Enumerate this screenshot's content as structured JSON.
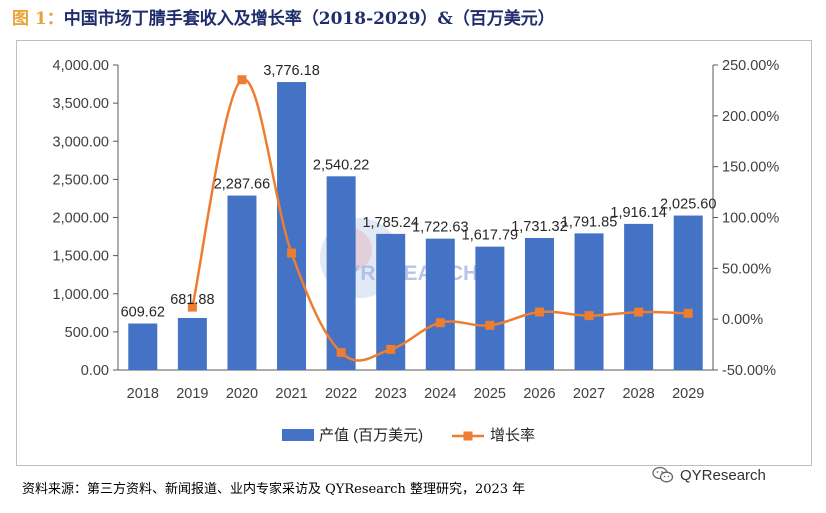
{
  "title": {
    "prefix": "图 1：",
    "main": "中国市场丁腈手套收入及增长率（2018-2029）&（百万美元）"
  },
  "source": "资料来源：第三方资料、新闻报道、业内专家采访及 QYResearch 整理研究，2023 年",
  "brand": {
    "name": "QYResearch",
    "icon": "wechat-icon"
  },
  "watermark": {
    "text": "QYRESEARCH",
    "icon": "globe-logo-icon"
  },
  "colors": {
    "bar": "#4472c4",
    "line": "#ed7d31",
    "axis": "#595959",
    "grid": "#d9d9d9"
  },
  "chart_data": {
    "type": "bar",
    "categories": [
      "2018",
      "2019",
      "2020",
      "2021",
      "2022",
      "2023",
      "2024",
      "2025",
      "2026",
      "2027",
      "2028",
      "2029"
    ],
    "series": [
      {
        "name": "产值 (百万美元)",
        "type": "bar",
        "axis": "left",
        "values": [
          609.62,
          681.88,
          2287.66,
          3776.18,
          2540.22,
          1785.24,
          1722.63,
          1617.79,
          1731.32,
          1791.85,
          1916.14,
          2025.6
        ],
        "labels": [
          "609.62",
          "681.88",
          "2,287.66",
          "3,776.18",
          "2,540.22",
          "1,785.24",
          "1,722.63",
          "1,617.79",
          "1,731.32",
          "1,791.85",
          "1,916.14",
          "2,025.60"
        ]
      },
      {
        "name": "增长率",
        "type": "line",
        "axis": "right",
        "values": [
          null,
          11.85,
          235.5,
          65.07,
          -32.73,
          -29.72,
          -3.51,
          -6.09,
          7.02,
          3.5,
          6.94,
          5.71
        ]
      }
    ],
    "left_axis": {
      "min": 0,
      "max": 4000,
      "ticks": [
        "0.00",
        "500.00",
        "1,000.00",
        "1,500.00",
        "2,000.00",
        "2,500.00",
        "3,000.00",
        "3,500.00",
        "4,000.00"
      ]
    },
    "right_axis": {
      "min": -50,
      "max": 250,
      "ticks": [
        "-50.00%",
        "0.00%",
        "50.00%",
        "100.00%",
        "150.00%",
        "200.00%",
        "250.00%"
      ]
    },
    "legend_position": "bottom"
  }
}
